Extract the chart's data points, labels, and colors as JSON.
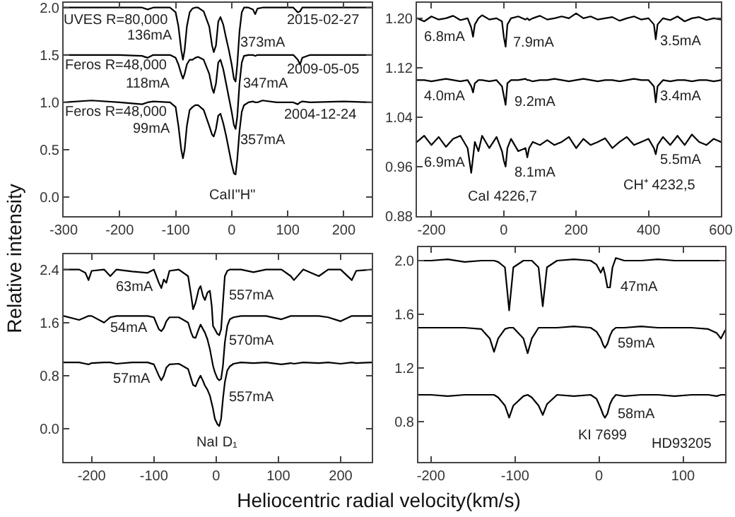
{
  "chart_data": [
    {
      "type": "line",
      "ylabel": "Relative intensity",
      "xlim": [
        -300,
        250
      ],
      "ylim": [
        -0.2,
        2.05
      ],
      "xticks": [
        -300,
        -200,
        -100,
        0,
        100,
        200
      ],
      "yticks": [
        {
          "value": 0,
          "label": "0.0"
        },
        0.5,
        {
          "value": 1,
          "label": "1.0"
        },
        1.5,
        {
          "value": 2,
          "label": "2.0"
        }
      ],
      "series": [
        {
          "color": "#000000",
          "x": [
            -300,
            -250,
            -200,
            -160,
            -150,
            -140,
            -110,
            -100,
            -95,
            -90,
            -87,
            -84,
            -80,
            -75,
            -70,
            -65,
            -60,
            -50,
            -40,
            -35,
            -32,
            -28,
            -24,
            -20,
            -15,
            -10,
            -5,
            0,
            4,
            7,
            10,
            14,
            18,
            22,
            30,
            38,
            42,
            46,
            55,
            80,
            110,
            118,
            122,
            126,
            140,
            200,
            250
          ],
          "values": [
            2.0,
            2.0,
            2.0,
            2.0,
            1.98,
            2.0,
            2.0,
            1.95,
            1.8,
            1.55,
            1.45,
            1.55,
            1.8,
            1.95,
            1.99,
            2.0,
            2.0,
            1.96,
            1.8,
            1.6,
            1.53,
            1.6,
            1.85,
            1.9,
            1.82,
            1.68,
            1.55,
            1.4,
            1.25,
            1.22,
            1.4,
            1.75,
            1.95,
            2.0,
            2.0,
            1.98,
            1.93,
            1.99,
            2.0,
            2.0,
            2.0,
            1.95,
            1.96,
            2.0,
            2.0,
            2.0,
            2.0
          ]
        },
        {
          "color": "#000000",
          "x": [
            -300,
            -250,
            -200,
            -160,
            -150,
            -140,
            -110,
            -100,
            -95,
            -90,
            -87,
            -84,
            -80,
            -75,
            -70,
            -65,
            -60,
            -50,
            -40,
            -35,
            -32,
            -28,
            -24,
            -20,
            -15,
            -10,
            -5,
            0,
            4,
            7,
            10,
            14,
            18,
            22,
            30,
            38,
            42,
            46,
            55,
            80,
            110,
            118,
            122,
            126,
            140,
            200,
            250
          ],
          "values": [
            1.5,
            1.5,
            1.5,
            1.49,
            1.47,
            1.5,
            1.5,
            1.47,
            1.4,
            1.3,
            1.25,
            1.3,
            1.4,
            1.45,
            1.45,
            1.47,
            1.48,
            1.45,
            1.3,
            1.15,
            1.1,
            1.2,
            1.42,
            1.45,
            1.35,
            1.2,
            1.05,
            0.9,
            0.76,
            0.72,
            0.85,
            1.2,
            1.42,
            1.49,
            1.5,
            1.5,
            1.49,
            1.5,
            1.5,
            1.5,
            1.5,
            1.45,
            1.4,
            1.47,
            1.5,
            1.5,
            1.5
          ]
        },
        {
          "color": "#000000",
          "x": [
            -300,
            -250,
            -200,
            -160,
            -150,
            -140,
            -110,
            -100,
            -95,
            -90,
            -87,
            -84,
            -80,
            -75,
            -70,
            -65,
            -60,
            -50,
            -40,
            -35,
            -32,
            -28,
            -24,
            -20,
            -15,
            -10,
            -5,
            0,
            4,
            7,
            10,
            14,
            18,
            22,
            30,
            38,
            42,
            46,
            55,
            80,
            110,
            118,
            122,
            126,
            140,
            200,
            250
          ],
          "values": [
            1.0,
            1.02,
            1.0,
            0.98,
            1.0,
            1.01,
            1.0,
            0.95,
            0.75,
            0.5,
            0.41,
            0.5,
            0.75,
            0.92,
            0.95,
            0.97,
            0.97,
            0.92,
            0.75,
            0.66,
            0.64,
            0.72,
            0.86,
            0.88,
            0.78,
            0.65,
            0.5,
            0.35,
            0.25,
            0.24,
            0.4,
            0.7,
            0.9,
            0.97,
            1.0,
            1.01,
            1.0,
            1.0,
            1.02,
            1.0,
            1.0,
            0.98,
            1.0,
            1.01,
            1.0,
            1.01,
            1.0
          ]
        }
      ],
      "annotations": [
        "UVES R=80,000",
        "136mA",
        "373mA",
        "2015-02-27",
        "Feros R=48,000",
        "118mA",
        "347mA",
        "2009-05-05",
        "Feros R=48,000",
        "99mA",
        "357mA",
        "2004-12-24",
        "CaII\"H\""
      ]
    },
    {
      "type": "line",
      "xlim": [
        -240,
        600
      ],
      "ylim": [
        0.88,
        1.225
      ],
      "xticks": [
        -200,
        0,
        200,
        400,
        600
      ],
      "yticks": [
        0.88,
        0.96,
        1.04,
        1.12,
        {
          "value": 1.2,
          "label": "1.20"
        }
      ],
      "series": [
        {
          "color": "#000000",
          "x": [
            -240,
            -220,
            -200,
            -180,
            -160,
            -140,
            -120,
            -100,
            -90,
            -85,
            -80,
            -70,
            -60,
            -40,
            -20,
            -5,
            0,
            5,
            10,
            20,
            40,
            60,
            65,
            70,
            80,
            100,
            120,
            140,
            160,
            180,
            200,
            220,
            240,
            260,
            280,
            300,
            320,
            340,
            360,
            380,
            400,
            415,
            420,
            425,
            440,
            460,
            480,
            500,
            520,
            540,
            560,
            580,
            600
          ],
          "values": [
            1.2,
            1.195,
            1.203,
            1.198,
            1.2,
            1.204,
            1.197,
            1.2,
            1.185,
            1.17,
            1.19,
            1.2,
            1.205,
            1.198,
            1.2,
            1.195,
            1.17,
            1.154,
            1.19,
            1.2,
            1.203,
            1.198,
            1.2,
            1.197,
            1.2,
            1.204,
            1.198,
            1.2,
            1.203,
            1.2,
            1.208,
            1.2,
            1.203,
            1.198,
            1.2,
            1.202,
            1.196,
            1.2,
            1.203,
            1.198,
            1.2,
            1.19,
            1.166,
            1.19,
            1.2,
            1.197,
            1.203,
            1.195,
            1.2,
            1.202,
            1.197,
            1.2,
            1.198
          ]
        },
        {
          "color": "#000000",
          "x": [
            -240,
            -220,
            -200,
            -180,
            -160,
            -140,
            -120,
            -100,
            -90,
            -85,
            -80,
            -70,
            -60,
            -40,
            -20,
            -5,
            0,
            5,
            10,
            20,
            40,
            60,
            65,
            70,
            80,
            100,
            120,
            140,
            160,
            180,
            200,
            220,
            240,
            260,
            280,
            300,
            320,
            340,
            360,
            380,
            400,
            415,
            420,
            425,
            440,
            460,
            480,
            500,
            520,
            540,
            560,
            580,
            600
          ],
          "values": [
            1.1,
            1.1,
            1.098,
            1.1,
            1.102,
            1.1,
            1.098,
            1.1,
            1.09,
            1.08,
            1.095,
            1.1,
            1.1,
            1.098,
            1.1,
            1.09,
            1.075,
            1.06,
            1.095,
            1.1,
            1.1,
            1.102,
            1.1,
            1.1,
            1.098,
            1.1,
            1.1,
            1.102,
            1.1,
            1.098,
            1.1,
            1.102,
            1.1,
            1.098,
            1.1,
            1.1,
            1.098,
            1.1,
            1.102,
            1.1,
            1.1,
            1.09,
            1.064,
            1.09,
            1.1,
            1.098,
            1.1,
            1.1,
            1.098,
            1.1,
            1.1,
            1.098,
            1.1
          ]
        },
        {
          "color": "#000000",
          "x": [
            -240,
            -220,
            -200,
            -180,
            -160,
            -140,
            -120,
            -100,
            -90,
            -85,
            -80,
            -70,
            -60,
            -40,
            -20,
            -5,
            0,
            5,
            10,
            20,
            40,
            60,
            65,
            70,
            80,
            100,
            120,
            140,
            160,
            180,
            200,
            220,
            240,
            260,
            280,
            300,
            320,
            340,
            360,
            380,
            400,
            415,
            420,
            425,
            440,
            460,
            480,
            500,
            520,
            540,
            560,
            580,
            600
          ],
          "values": [
            1.0,
            1.01,
            0.995,
            1.008,
            0.992,
            1.005,
            1.01,
            0.99,
            0.95,
            0.975,
            1.0,
            0.985,
            1.01,
            0.99,
            1.008,
            0.985,
            0.97,
            0.96,
            0.99,
            1.005,
            0.985,
            0.99,
            0.975,
            0.99,
            1.0,
            0.995,
            1.003,
            0.995,
            1.0,
            1.008,
            0.99,
            1.005,
            0.995,
            1.0,
            1.006,
            0.99,
            1.0,
            1.008,
            0.995,
            1.0,
            1.005,
            0.99,
            0.98,
            0.995,
            1.008,
            0.995,
            1.01,
            0.995,
            1.012,
            1.0,
            0.995,
            1.005,
            1.0
          ]
        }
      ],
      "annotations": [
        "6.8mA",
        "7.9mA",
        "3.5mA",
        "4.0mA",
        "9.2mA",
        "3.4mA",
        "6.9mA",
        "8.1mA",
        "5.5mA",
        "CaI 4226,7",
        "CH⁺ 4232,5"
      ]
    },
    {
      "type": "line",
      "xlabel": "Heliocentric radial velocity(km/s)",
      "xlim": [
        -245,
        250
      ],
      "ylim": [
        -0.5,
        2.63
      ],
      "xticks": [
        -200,
        -100,
        0,
        100,
        200
      ],
      "yticks": [
        {
          "value": 0,
          "label": "0.0"
        },
        0.8,
        1.6,
        2.4
      ],
      "series": [
        {
          "color": "#000000",
          "x": [
            -245,
            -220,
            -210,
            -205,
            -200,
            -180,
            -170,
            -160,
            -135,
            -110,
            -100,
            -92,
            -88,
            -84,
            -80,
            -75,
            -60,
            -45,
            -40,
            -37,
            -33,
            -28,
            -25,
            -21,
            -18,
            -14,
            -10,
            -7,
            -5,
            -2,
            2,
            5,
            8,
            11,
            14,
            18,
            22,
            28,
            40,
            60,
            80,
            105,
            120,
            125,
            140,
            165,
            180,
            200,
            218,
            225,
            250
          ],
          "values": [
            2.4,
            2.4,
            2.35,
            2.24,
            2.38,
            2.4,
            2.3,
            2.4,
            2.37,
            2.35,
            2.4,
            2.2,
            2.12,
            2.25,
            2.2,
            2.38,
            2.4,
            2.3,
            2.0,
            1.8,
            1.9,
            2.1,
            2.15,
            2.0,
            1.94,
            2.05,
            2.08,
            1.85,
            1.55,
            1.5,
            1.43,
            1.41,
            1.5,
            1.9,
            2.3,
            2.38,
            2.4,
            2.4,
            2.4,
            2.36,
            2.4,
            2.4,
            2.3,
            2.24,
            2.4,
            2.3,
            2.4,
            2.4,
            2.24,
            2.38,
            2.4
          ]
        },
        {
          "color": "#000000",
          "x": [
            -245,
            -220,
            -210,
            -205,
            -200,
            -180,
            -170,
            -160,
            -135,
            -110,
            -100,
            -92,
            -88,
            -84,
            -80,
            -75,
            -60,
            -45,
            -40,
            -37,
            -33,
            -28,
            -25,
            -21,
            -18,
            -14,
            -10,
            -7,
            -5,
            -2,
            2,
            5,
            8,
            11,
            14,
            18,
            22,
            28,
            40,
            60,
            80,
            105,
            120,
            125,
            140,
            165,
            180,
            200,
            218,
            225,
            250
          ],
          "values": [
            1.7,
            1.64,
            1.68,
            1.7,
            1.7,
            1.6,
            1.68,
            1.7,
            1.7,
            1.7,
            1.68,
            1.5,
            1.47,
            1.52,
            1.62,
            1.68,
            1.68,
            1.6,
            1.45,
            1.38,
            1.37,
            1.5,
            1.57,
            1.5,
            1.45,
            1.35,
            1.2,
            1.05,
            0.95,
            0.85,
            0.76,
            0.73,
            0.75,
            0.95,
            1.3,
            1.55,
            1.65,
            1.68,
            1.7,
            1.7,
            1.7,
            1.65,
            1.7,
            1.7,
            1.7,
            1.7,
            1.68,
            1.62,
            1.7,
            1.7,
            1.7
          ]
        },
        {
          "color": "#000000",
          "x": [
            -245,
            -220,
            -210,
            -205,
            -200,
            -180,
            -170,
            -160,
            -135,
            -110,
            -100,
            -92,
            -88,
            -84,
            -80,
            -75,
            -60,
            -45,
            -40,
            -37,
            -33,
            -28,
            -25,
            -21,
            -18,
            -14,
            -10,
            -7,
            -5,
            -2,
            2,
            5,
            8,
            11,
            14,
            18,
            22,
            28,
            40,
            60,
            80,
            105,
            120,
            125,
            140,
            165,
            180,
            200,
            218,
            225,
            250
          ],
          "values": [
            1.0,
            1.0,
            0.98,
            0.97,
            0.99,
            1.0,
            1.0,
            0.98,
            1.0,
            1.0,
            0.97,
            0.8,
            0.73,
            0.8,
            0.92,
            0.97,
            0.98,
            0.9,
            0.75,
            0.66,
            0.64,
            0.75,
            0.8,
            0.72,
            0.65,
            0.59,
            0.5,
            0.38,
            0.3,
            0.15,
            0.07,
            0.04,
            0.15,
            0.45,
            0.7,
            0.88,
            0.94,
            0.98,
            1.0,
            0.99,
            1.0,
            0.97,
            0.99,
            0.98,
            1.0,
            0.99,
            1.0,
            0.98,
            1.0,
            0.99,
            1.0
          ]
        }
      ],
      "annotations": [
        "63mA",
        "557mA",
        "54mA",
        "570mA",
        "57mA",
        "557mA",
        "NaI D₁"
      ]
    },
    {
      "type": "line",
      "xlim": [
        -215,
        150
      ],
      "ylim": [
        0.5,
        2.1
      ],
      "xticks": [
        -200,
        -100,
        0,
        100
      ],
      "yticks": [
        0.8,
        1.2,
        1.6,
        {
          "value": 2,
          "label": "2.0"
        }
      ],
      "series": [
        {
          "color": "#000000",
          "x": [
            -215,
            -200,
            -180,
            -160,
            -140,
            -130,
            -125,
            -120,
            -112,
            -107,
            -102,
            -90,
            -85,
            -80,
            -72,
            -67,
            -62,
            -50,
            -30,
            -10,
            -3,
            2,
            5,
            7,
            10,
            13,
            16,
            20,
            30,
            50,
            70,
            90,
            110,
            130,
            140,
            145,
            150
          ],
          "values": [
            2.0,
            2.0,
            2.01,
            1.99,
            2.0,
            2.0,
            2.0,
            1.99,
            1.95,
            1.63,
            1.95,
            2.0,
            2.0,
            2.0,
            1.95,
            1.66,
            1.95,
            2.0,
            2.01,
            2.0,
            1.97,
            1.91,
            1.95,
            1.9,
            1.8,
            1.8,
            1.95,
            2.02,
            2.0,
            2.0,
            2.01,
            2.0,
            2.0,
            2.0,
            2.0,
            2.0,
            2.0
          ]
        },
        {
          "color": "#000000",
          "x": [
            -215,
            -200,
            -180,
            -160,
            -140,
            -130,
            -125,
            -120,
            -112,
            -107,
            -102,
            -90,
            -85,
            -80,
            -72,
            -67,
            -62,
            -50,
            -30,
            -10,
            -3,
            2,
            5,
            7,
            10,
            13,
            16,
            20,
            30,
            50,
            70,
            90,
            110,
            130,
            140,
            145,
            150
          ],
          "values": [
            1.5,
            1.5,
            1.5,
            1.5,
            1.49,
            1.42,
            1.32,
            1.42,
            1.49,
            1.5,
            1.5,
            1.42,
            1.31,
            1.42,
            1.5,
            1.5,
            1.5,
            1.5,
            1.51,
            1.5,
            1.47,
            1.42,
            1.37,
            1.35,
            1.38,
            1.44,
            1.48,
            1.5,
            1.5,
            1.51,
            1.5,
            1.5,
            1.5,
            1.49,
            1.46,
            1.42,
            1.48
          ]
        },
        {
          "color": "#000000",
          "x": [
            -215,
            -200,
            -180,
            -160,
            -140,
            -130,
            -125,
            -120,
            -112,
            -107,
            -102,
            -90,
            -85,
            -80,
            -72,
            -67,
            -62,
            -50,
            -30,
            -10,
            -3,
            2,
            5,
            7,
            10,
            13,
            16,
            20,
            30,
            50,
            70,
            90,
            110,
            130,
            140,
            145,
            150
          ],
          "values": [
            1.0,
            1.0,
            0.99,
            1.0,
            1.0,
            1.0,
            1.0,
            0.98,
            0.92,
            0.83,
            0.92,
            0.99,
            1.0,
            0.98,
            0.92,
            0.85,
            0.93,
            1.0,
            0.99,
            1.0,
            0.97,
            0.9,
            0.85,
            0.83,
            0.86,
            0.93,
            0.97,
            1.0,
            0.99,
            1.0,
            1.0,
            0.99,
            1.0,
            1.0,
            0.99,
            1.0,
            1.0
          ]
        }
      ],
      "annotations": [
        "47mA",
        "59mA",
        "58mA",
        "KI 7699",
        "HD93205"
      ]
    }
  ]
}
